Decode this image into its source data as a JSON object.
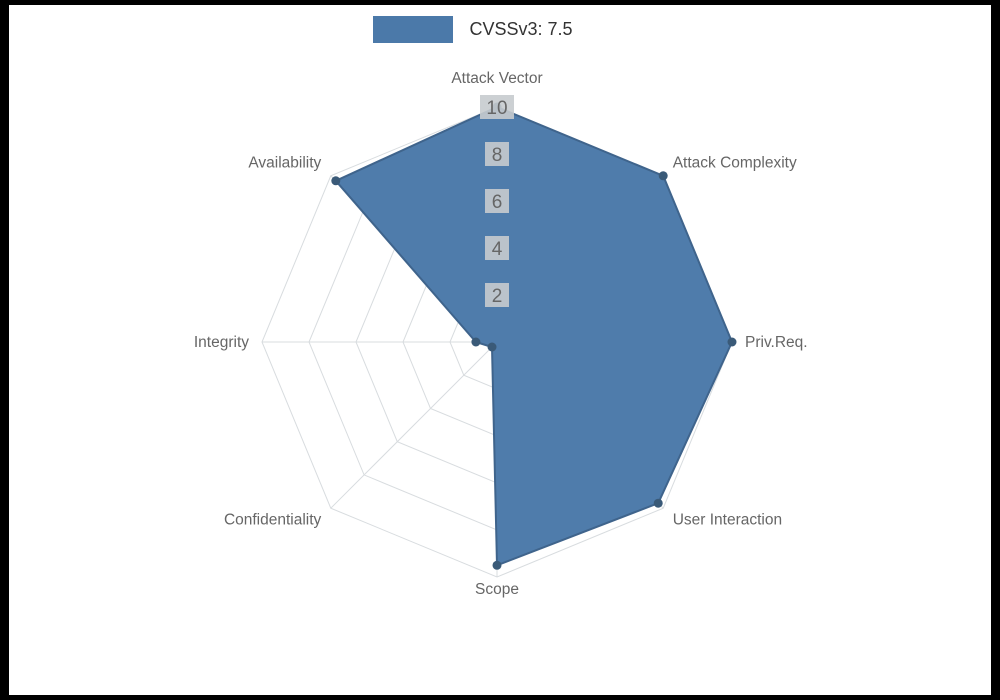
{
  "frame": {
    "background": "#000000",
    "canvas_background": "#ffffff"
  },
  "legend": {
    "label": "CVSSv3: 7.5"
  },
  "chart_data": {
    "type": "radar",
    "title": "CVSSv3: 7.5",
    "legend_position": "top",
    "grid": true,
    "categories": [
      "Attack Vector",
      "Attack Complexity",
      "Priv.Req.",
      "User Interaction",
      "Scope",
      "Confidentiality",
      "Integrity",
      "Availability"
    ],
    "series": [
      {
        "name": "CVSSv3: 7.5",
        "values": [
          10,
          10,
          10,
          9.7,
          9.5,
          0.3,
          0.9,
          9.7
        ]
      }
    ],
    "ticks": [
      2,
      4,
      6,
      8,
      10
    ],
    "rmin": 0,
    "rmax": 10,
    "colors": {
      "fill": "#4b79a9",
      "stroke": "#3f648c",
      "point": "#3a5a78",
      "grid": "#d8dcdf",
      "tick_text": "#666666",
      "tick_backdrop": "#c7cbce",
      "label": "#666666",
      "legend_text": "#333333"
    }
  }
}
